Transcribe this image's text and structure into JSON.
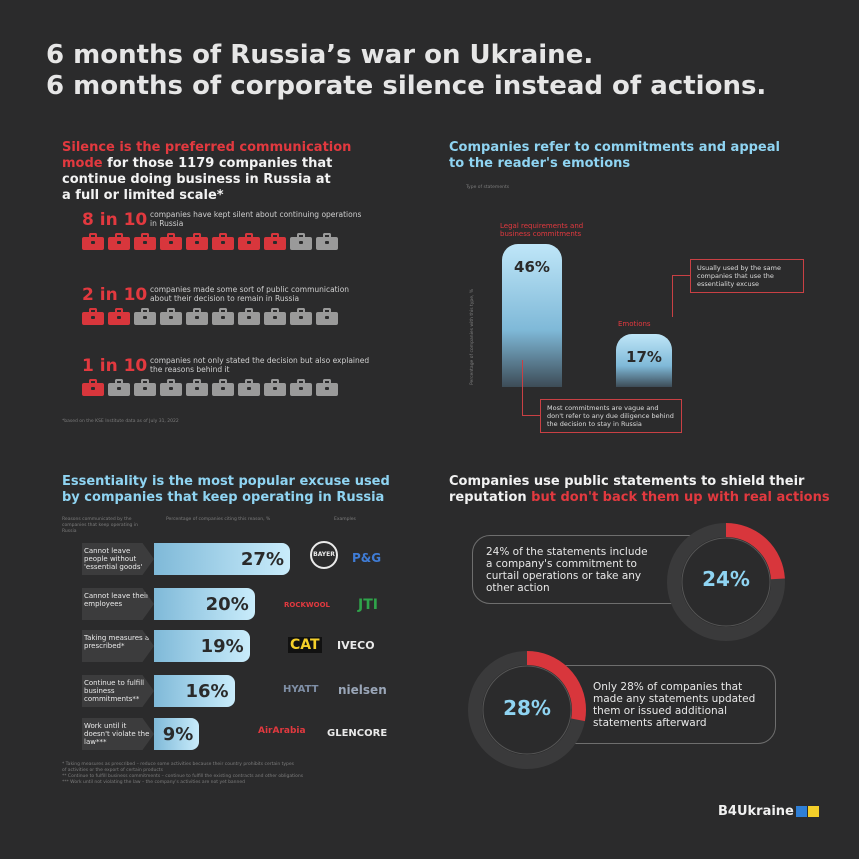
{
  "headline": {
    "line1": "6 months of Russia’s war on Ukraine.",
    "line2": "6 months of corporate silence instead of actions."
  },
  "silence": {
    "title_red": "Silence is the preferred communication mode",
    "title_white_1": " for those 1179 companies that",
    "title_white_2": "continue doing business in Russia at",
    "title_white_3": "a full or limited scale*",
    "rows": [
      {
        "big": "8 in 10",
        "text": "companies have kept silent about continuing operations in Russia",
        "active": 8
      },
      {
        "big": "2 in 10",
        "text": "companies made some sort of public communication about their decision to remain in Russia",
        "active": 2
      },
      {
        "big": "1 in 10",
        "text": "companies not only stated the decision but also explained the reasons behind it",
        "active": 1
      }
    ],
    "total": 10,
    "footnote": "*based on the KSE Institute data as of July 31, 2022",
    "colors": {
      "active": "#d8363c",
      "inactive": "#9a9a9a"
    }
  },
  "commitments": {
    "title_1": "Companies refer to commitments and appeal",
    "title_2": "to the reader's emotions",
    "type_label": "Type of statements",
    "ylabel": "Percentage of companies with this type, %",
    "callout_top": "Usually used by the same companies that use the essentiality excuse",
    "callout_bottom": "Most commitments are vague and don't refer to any due diligence behind the decision to stay in Russia"
  },
  "essentiality": {
    "title_1": "Essentiality is the most popular excuse used",
    "title_2": "by companies that keep operating in Russia",
    "col1": "Reasons communicated by the companies that keep operating in Russia",
    "col2": "Percentage of companies citing this reason, %",
    "col3": "Examples",
    "footnote_1": "* Taking measures as prescribed – reduce some activities because their country prohibits certain types",
    "footnote_2": "of activities or the export of certain products",
    "footnote_3": "** Continue to fulfill business commitments – continue to fulfill the existing contracts and other obligations",
    "footnote_4": "*** Work until not violating the law – the company's activities are not yet banned"
  },
  "shield": {
    "title_white_1": "Companies use public statements to shield their",
    "title_white_2": "reputation",
    "title_red": " but don't back them up with real actions",
    "stat1_text": "24% of the statements include a company's commitment to curtail operations or take any other action",
    "stat1_value": "24%",
    "stat1_fraction": 0.24,
    "stat2_text": "Only 28% of companies that made any statements updated them or issued additional statements afterward",
    "stat2_value": "28%",
    "stat2_fraction": 0.28,
    "colors": {
      "highlight": "#d8363c",
      "base": "#3a3a3b"
    }
  },
  "brand": {
    "name": "B4Ukraine",
    "flag_blue": "#2f7fd6",
    "flag_yellow": "#f4cf2a"
  },
  "chart_data": [
    {
      "type": "bar",
      "title": "Companies refer to commitments and appeal to the reader's emotions",
      "xlabel": "Type of statements",
      "ylabel": "Percentage of companies with this type, %",
      "categories": [
        "Legal requirements and business commitments",
        "Emotions"
      ],
      "values": [
        46,
        17
      ],
      "value_labels": [
        "46%",
        "17%"
      ],
      "ylim": [
        0,
        50
      ]
    },
    {
      "type": "bar",
      "orientation": "horizontal",
      "title": "Essentiality is the most popular excuse used by companies that keep operating in Russia",
      "categories": [
        "Cannot leave people without 'essential goods'",
        "Cannot leave their employees",
        "Taking measures as prescribed*",
        "Continue to fulfill business commitments**",
        "Work until it doesn't violate the law***"
      ],
      "values": [
        27,
        20,
        19,
        16,
        9
      ],
      "value_labels": [
        "27%",
        "20%",
        "19%",
        "16%",
        "9%"
      ],
      "examples": [
        [
          "BAYER",
          "P&G"
        ],
        [
          "ROCKWOOL",
          "JTI"
        ],
        [
          "CAT",
          "IVECO"
        ],
        [
          "HYATT",
          "nielsen"
        ],
        [
          "AirArabia",
          "GLENCORE"
        ]
      ],
      "ylim": [
        0,
        30
      ]
    },
    {
      "type": "pie",
      "title": "24% of the statements include a company's commitment to curtail operations or take any other action",
      "labels": [
        "Commitment to curtail operations or other action",
        "Other"
      ],
      "values": [
        24,
        76
      ]
    },
    {
      "type": "pie",
      "title": "Only 28% of companies that made any statements updated them or issued additional statements afterward",
      "labels": [
        "Updated or issued additional statements",
        "Other"
      ],
      "values": [
        28,
        72
      ]
    }
  ]
}
